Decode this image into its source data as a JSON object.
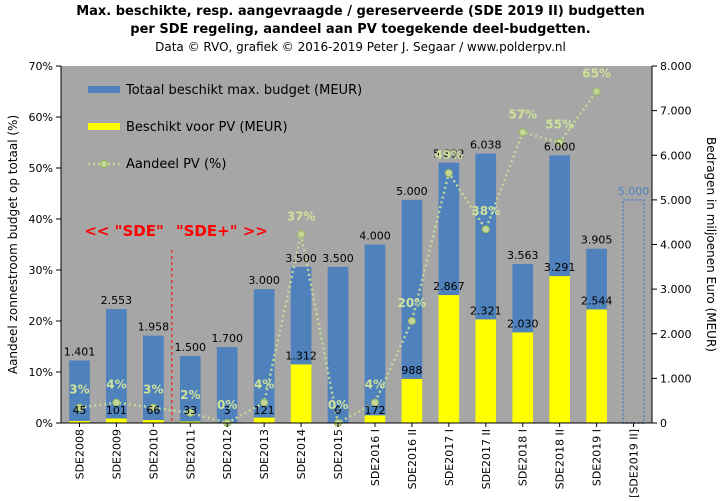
{
  "title_line1": "Max. beschikte, resp. aangevraagde / gereserveerde (SDE 2019 II) budgetten",
  "title_line2": "per SDE regeling, aandeel aan PV toegekende deel-budgetten.",
  "subtitle": "Data © RVO, grafiek © 2016-2019 Peter J. Segaar / www.polderpv.nl",
  "annotation_sde": "<< \"SDE\"",
  "annotation_sdeplus": "\"SDE+\" >>",
  "colors": {
    "total": "#4f81bd",
    "pv": "#ffff00",
    "share": "#c4d79b",
    "share_label": "#cfe29a",
    "plot_bg": "#a6a6a6",
    "divider": "#ff0000",
    "annotation": "#ff0000",
    "reserved": "#4f81bd"
  },
  "chart_data": {
    "type": "bar",
    "categories": [
      "SDE2008",
      "SDE2009",
      "SDE2010",
      "SDE2011",
      "SDE2012",
      "SDE2013",
      "SDE2014",
      "SDE2015",
      "SDE2016 I",
      "SDE2016 II",
      "SDE2017 I",
      "SDE2017 II",
      "SDE2018 I",
      "SDE2018 II",
      "SDE2019 I",
      "[SDE2019 II]"
    ],
    "series": [
      {
        "name": "Totaal beschikt max. budget (MEUR)",
        "axis": "right",
        "values": [
          1401,
          2553,
          1958,
          1500,
          1700,
          3000,
          3500,
          3500,
          4000,
          5000,
          5832,
          6038,
          3563,
          6000,
          3905,
          5000
        ],
        "labels": [
          "1.401",
          "2.553",
          "1.958",
          "1.500",
          "1.700",
          "3.000",
          "3.500",
          "3.500",
          "4.000",
          "5.000",
          "5.832",
          "6.038",
          "3.563",
          "6.000",
          "3.905",
          "5.000"
        ]
      },
      {
        "name": "Beschikt voor PV (MEUR)",
        "axis": "right",
        "values": [
          45,
          101,
          66,
          33,
          3,
          121,
          1312,
          0,
          172,
          988,
          2867,
          2321,
          2030,
          3291,
          2544,
          null
        ],
        "labels": [
          "45",
          "101",
          "66",
          "33",
          "3",
          "121",
          "1.312",
          "0",
          "172",
          "988",
          "2.867",
          "2.321",
          "2.030",
          "3.291",
          "2.544",
          ""
        ]
      },
      {
        "name": "Aandeel PV (%)",
        "axis": "left",
        "type": "line",
        "values": [
          3,
          4,
          3,
          2,
          0,
          4,
          37,
          0,
          4,
          20,
          49,
          38,
          57,
          55,
          65,
          null
        ],
        "labels": [
          "3%",
          "4%",
          "3%",
          "2%",
          "0%",
          "4%",
          "37%",
          "0%",
          "4%",
          "20%",
          "49%",
          "38%",
          "57%",
          "55%",
          "65%",
          ""
        ]
      }
    ],
    "ylabel_left": "Aandeel zonnestroom  budget op totaal (%)",
    "ylabel_right": "Bedragen in miljoenen  Euro  (MEUR)",
    "ylim_left": [
      0,
      70
    ],
    "ylim_right": [
      0,
      8000
    ],
    "yticks_left": [
      "0%",
      "10%",
      "20%",
      "30%",
      "40%",
      "50%",
      "60%",
      "70%"
    ],
    "yticks_right": [
      "0",
      "1.000",
      "2.000",
      "3.000",
      "4.000",
      "5.000",
      "6.000",
      "7.000",
      "8.000"
    ],
    "legend_position": "top-left",
    "reserved_category": "[SDE2019 II]"
  }
}
